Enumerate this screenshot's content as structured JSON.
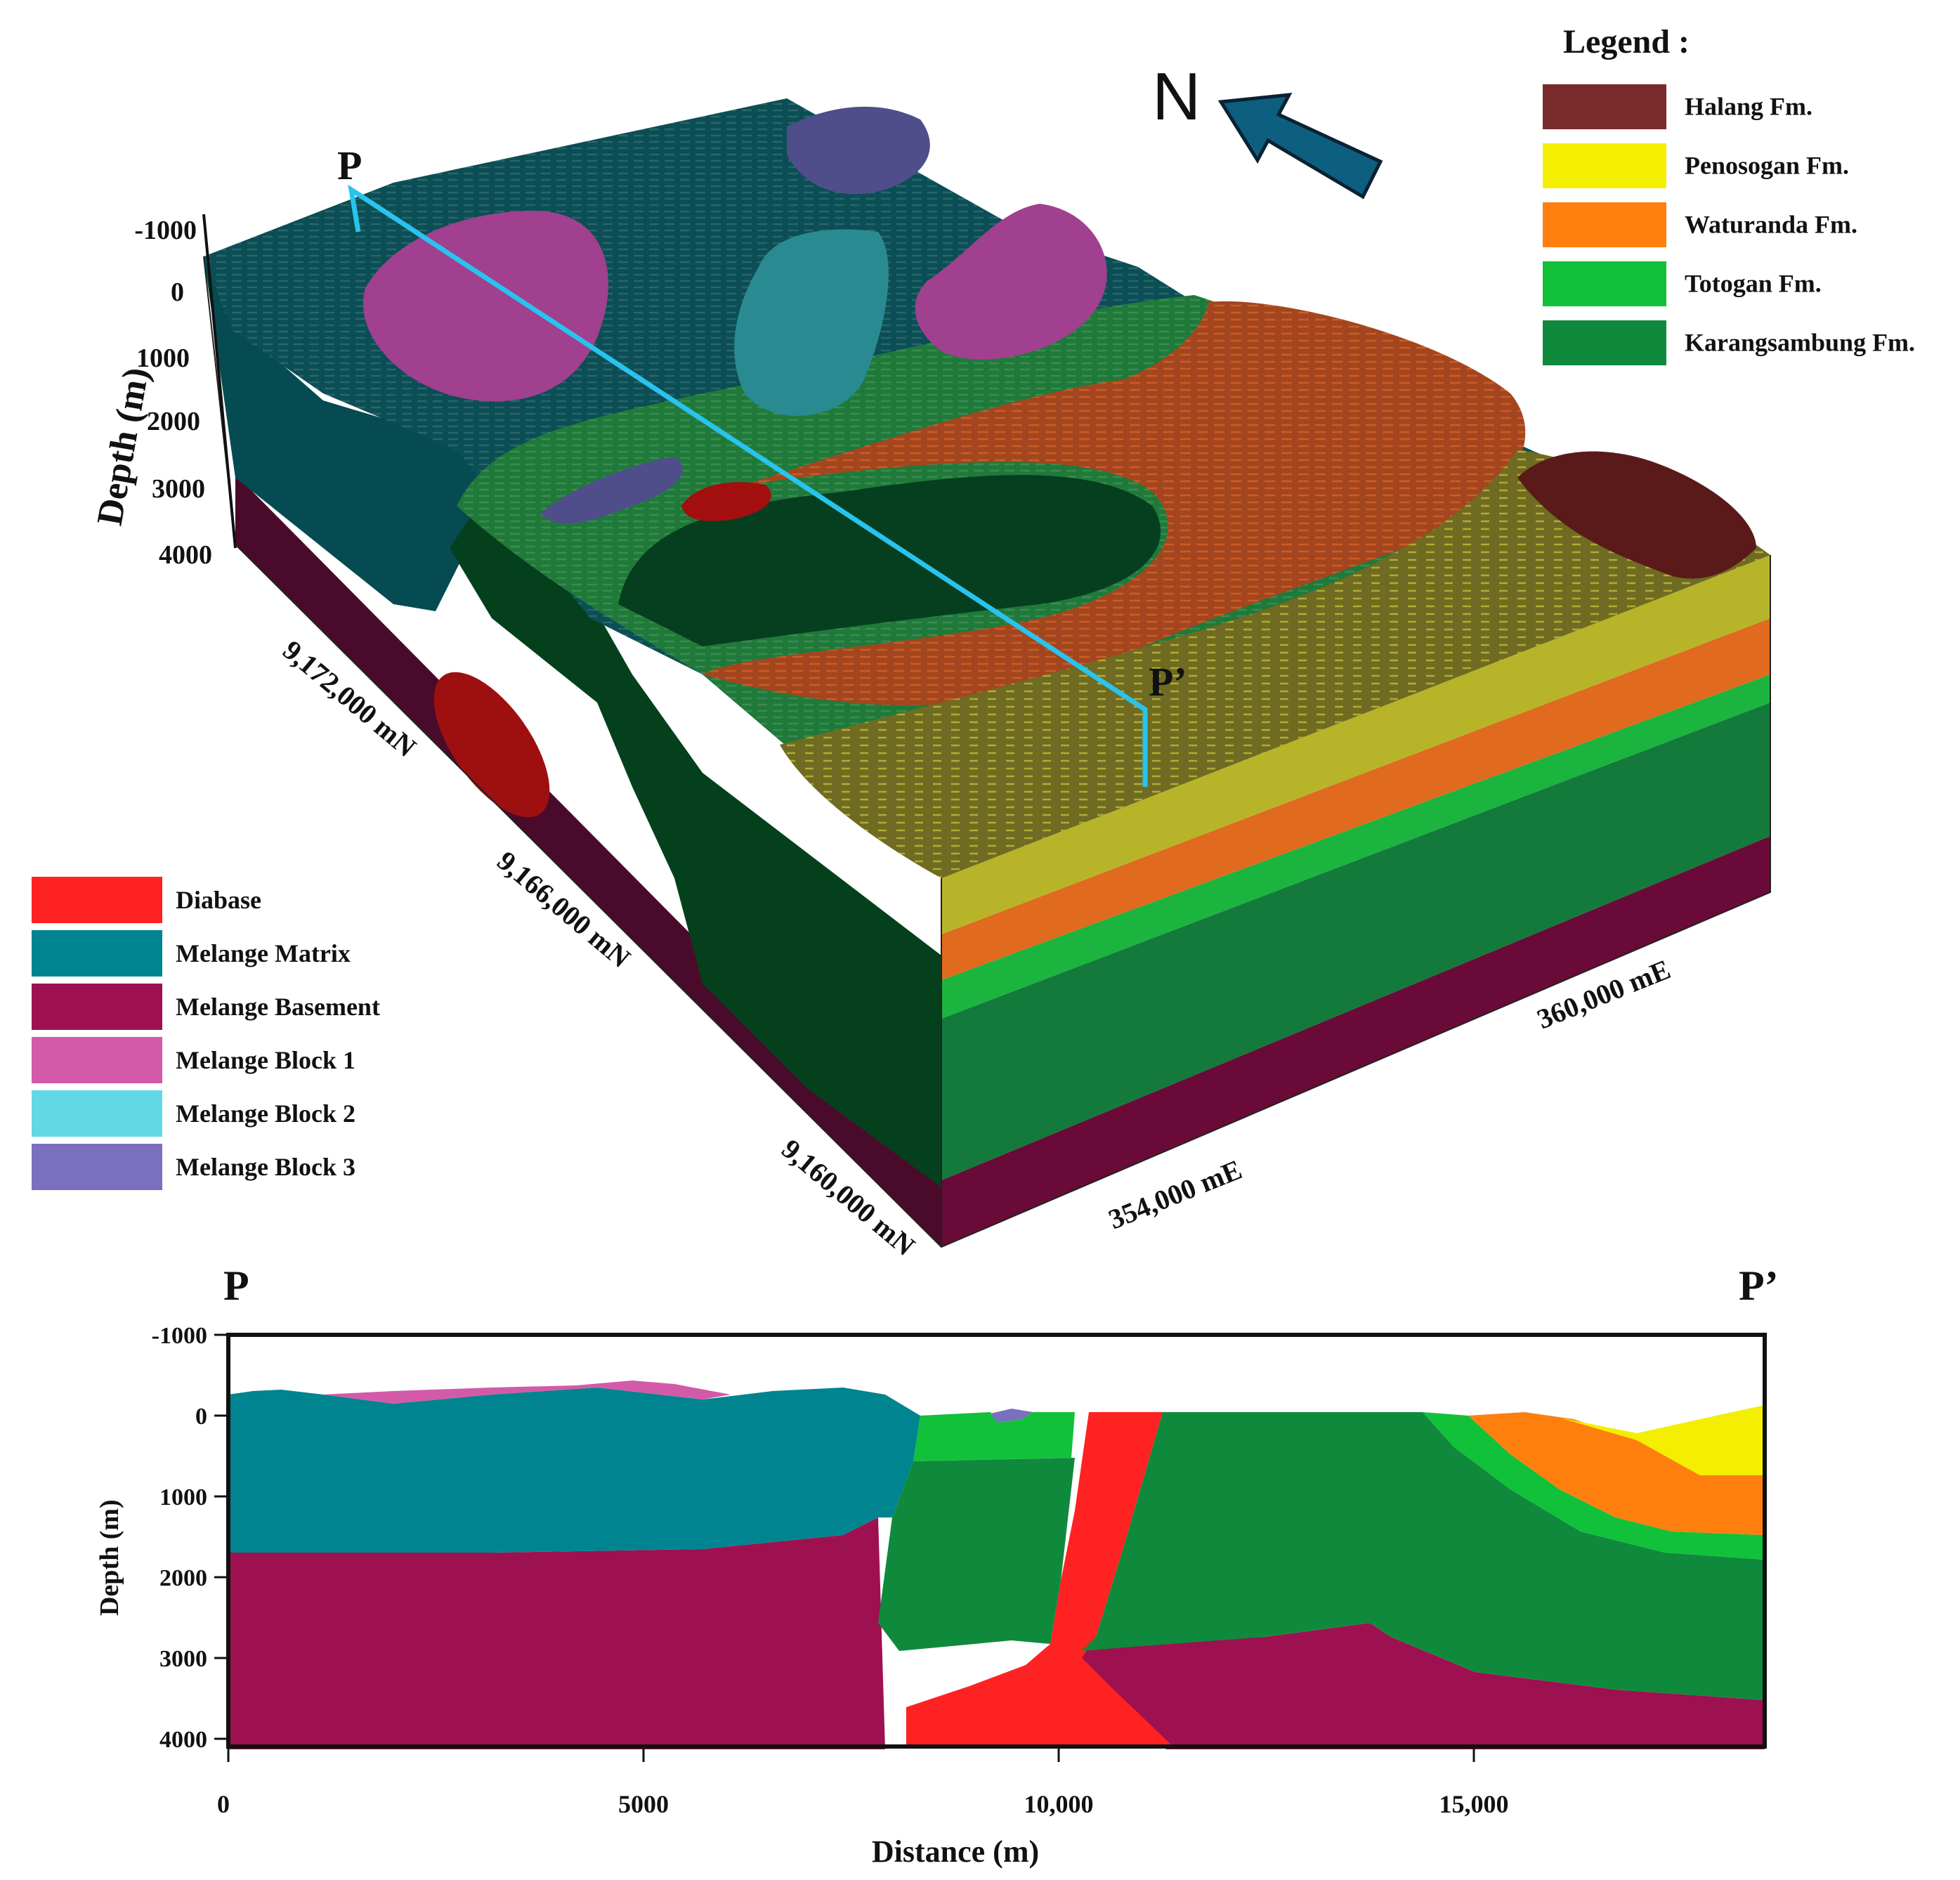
{
  "north_label": "N",
  "legend_title": "Legend :",
  "legend_right": [
    {
      "label": "Halang Fm.",
      "color": "#7a2a2a"
    },
    {
      "label": "Penosogan Fm.",
      "color": "#f4ee00"
    },
    {
      "label": "Waturanda Fm.",
      "color": "#ff7f0e"
    },
    {
      "label": "Totogan Fm.",
      "color": "#11c13a"
    },
    {
      "label": "Karangsambung Fm.",
      "color": "#0f8a3c"
    }
  ],
  "legend_left": [
    {
      "label": "Diabase",
      "color": "#ff2222"
    },
    {
      "label": "Melange Matrix",
      "color": "#00848f"
    },
    {
      "label": "Melange Basement",
      "color": "#9e1150"
    },
    {
      "label": "Melange Block 1",
      "color": "#d35aa8"
    },
    {
      "label": "Melange Block 2",
      "color": "#62d8e4"
    },
    {
      "label": "Melange Block 3",
      "color": "#7a70bf"
    }
  ],
  "block_model": {
    "depth_axis_label": "Depth (m)",
    "depth_ticks": [
      "-1000",
      "0",
      "1000",
      "2000",
      "3000",
      "4000"
    ],
    "northing_ticks": [
      "9,172,000 mN",
      "9,166,000 mN",
      "9,160,000 mN"
    ],
    "easting_ticks": [
      "354,000 mE",
      "360,000 mE"
    ],
    "section_start": "P",
    "section_end": "P’"
  },
  "cross_section": {
    "start_label": "P",
    "end_label": "P’",
    "xlabel": "Distance (m)",
    "ylabel": "Depth (m)",
    "x_ticks": [
      "0",
      "5000",
      "10,000",
      "15,000"
    ],
    "y_ticks": [
      "-1000",
      "0",
      "1000",
      "2000",
      "3000",
      "4000"
    ]
  },
  "chart_data": {
    "type": "area",
    "xlabel": "Distance (m)",
    "ylabel": "Depth (m)",
    "xlim": [
      0,
      18500
    ],
    "ylim": [
      4100,
      -1000
    ],
    "units": [
      "Melange Matrix",
      "Melange Block 1",
      "Melange Block 3",
      "Totogan Fm.",
      "Karangsambung Fm.",
      "Diabase",
      "Melange Basement",
      "Waturanda Fm.",
      "Penosogan Fm."
    ]
  }
}
